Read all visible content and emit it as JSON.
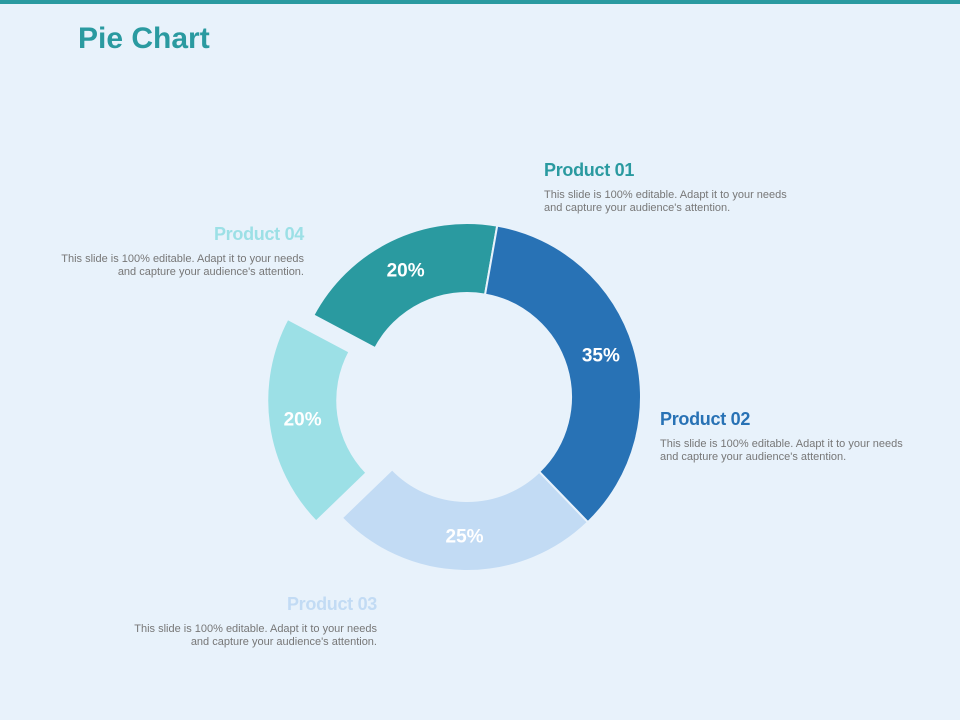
{
  "title": "Pie Chart",
  "colors": {
    "accent": "#2a9aa0",
    "background": "#e8f2fb"
  },
  "chart_data": {
    "type": "pie",
    "style": "donut",
    "title": "Pie Chart",
    "categories": [
      "Product 01",
      "Product 02",
      "Product 03",
      "Product 04"
    ],
    "values": [
      20,
      35,
      25,
      20
    ],
    "value_labels": [
      "20%",
      "35%",
      "25%",
      "20%"
    ],
    "colors": [
      "#2a9aa0",
      "#2872b5",
      "#c2dbf4",
      "#9ce0e6"
    ],
    "exploded": [
      "Product 04"
    ],
    "legend": "callouts"
  },
  "callouts": [
    {
      "name": "Product 01",
      "text": "This slide is 100% editable. Adapt it to your needs and capture your audience's attention.",
      "color": "#2a9aa0"
    },
    {
      "name": "Product 02",
      "text": "This slide is 100% editable. Adapt it to your needs and capture your audience's attention.",
      "color": "#2872b5"
    },
    {
      "name": "Product 03",
      "text": "This slide is 100% editable. Adapt it to your needs and capture your audience's attention.",
      "color": "#c2dbf4"
    },
    {
      "name": "Product 04",
      "text": "This slide is 100% editable. Adapt it to your needs and capture your audience's attention.",
      "color": "#9ce0e6"
    }
  ]
}
